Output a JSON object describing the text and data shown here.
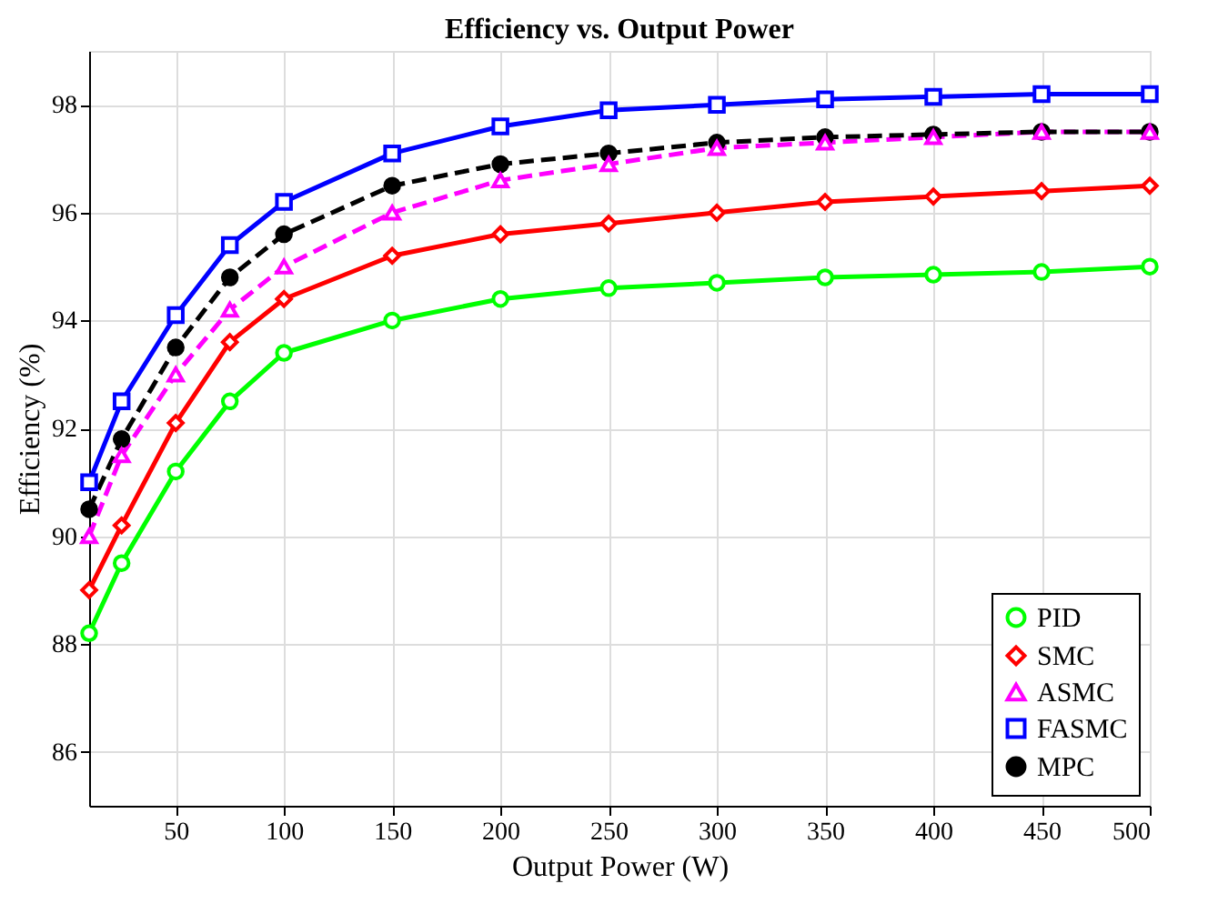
{
  "chart_data": {
    "type": "line",
    "title": "Efficiency vs. Output Power",
    "xlabel": "Output Power (W)",
    "ylabel": "Efficiency (%)",
    "x": [
      10,
      25,
      50,
      75,
      100,
      150,
      200,
      250,
      300,
      350,
      400,
      450,
      500
    ],
    "series": [
      {
        "name": "PID",
        "color": "#00ff00",
        "marker": "circle",
        "line_style": "solid",
        "values": [
          88.2,
          89.5,
          91.2,
          92.5,
          93.4,
          94.0,
          94.4,
          94.6,
          94.7,
          94.8,
          94.85,
          94.9,
          95.0
        ]
      },
      {
        "name": "SMC",
        "color": "#ff0000",
        "marker": "diamond",
        "line_style": "solid",
        "values": [
          89.0,
          90.2,
          92.1,
          93.6,
          94.4,
          95.2,
          95.6,
          95.8,
          96.0,
          96.2,
          96.3,
          96.4,
          96.5
        ]
      },
      {
        "name": "ASMC",
        "color": "#ff00ff",
        "marker": "triangle",
        "line_style": "dashed",
        "values": [
          90.0,
          91.5,
          93.0,
          94.2,
          95.0,
          96.0,
          96.6,
          96.9,
          97.2,
          97.3,
          97.4,
          97.5,
          97.5
        ]
      },
      {
        "name": "FASMC",
        "color": "#0000ff",
        "marker": "square",
        "line_style": "solid",
        "values": [
          91.0,
          92.5,
          94.1,
          95.4,
          96.2,
          97.1,
          97.6,
          97.9,
          98.0,
          98.1,
          98.15,
          98.2,
          98.2
        ]
      },
      {
        "name": "MPC",
        "color": "#000000",
        "marker": "circle",
        "line_style": "dashed",
        "values": [
          90.5,
          91.8,
          93.5,
          94.8,
          95.6,
          96.5,
          96.9,
          97.1,
          97.3,
          97.4,
          97.45,
          97.5,
          97.5
        ]
      }
    ],
    "xlim": [
      10,
      500
    ],
    "xticks": [
      50,
      100,
      150,
      200,
      250,
      300,
      350,
      400,
      450,
      500
    ],
    "ylim": [
      85,
      99
    ],
    "yticks": [
      86,
      88,
      90,
      92,
      94,
      96,
      98
    ],
    "grid": true,
    "legend": "bottom right"
  }
}
